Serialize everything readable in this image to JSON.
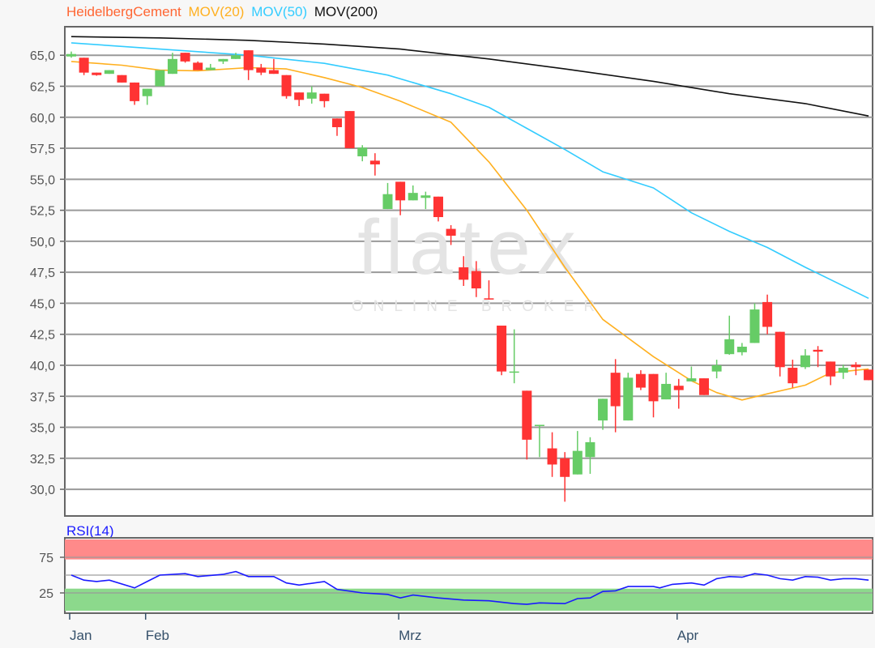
{
  "legend": {
    "instrument": "HeidelbergCement",
    "ma20": "MOV(20)",
    "ma50": "MOV(50)",
    "ma200": "MOV(200)"
  },
  "watermark": {
    "logo": "flatex",
    "tagline": "ONLINE BROKER"
  },
  "colors": {
    "instrument": "#ff6633",
    "ma20": "#ffb020",
    "ma50": "#33ccff",
    "ma200": "#111111",
    "up": "#66cc66",
    "down": "#ff3333",
    "rsi": "#1a1aff",
    "rsi_overbought": "#ff8a8a",
    "rsi_oversold": "#8cd98c"
  },
  "chart_data": [
    {
      "type": "candlestick",
      "title": "",
      "ylim": [
        27.85,
        67.3
      ],
      "grid": true,
      "legend_placement": "top-left",
      "y_ticks": [
        {
          "value": 65.0,
          "label": "65,0"
        },
        {
          "value": 62.5,
          "label": "62,5"
        },
        {
          "value": 60.0,
          "label": "60,0"
        },
        {
          "value": 57.5,
          "label": "57,5"
        },
        {
          "value": 55.0,
          "label": "55,0"
        },
        {
          "value": 52.5,
          "label": "52,5"
        },
        {
          "value": 50.0,
          "label": "50,0"
        },
        {
          "value": 47.5,
          "label": "47,5"
        },
        {
          "value": 45.0,
          "label": "45,0"
        },
        {
          "value": 42.5,
          "label": "42,5"
        },
        {
          "value": 40.0,
          "label": "40,0"
        },
        {
          "value": 37.5,
          "label": "37,5"
        },
        {
          "value": 35.0,
          "label": "35,0"
        },
        {
          "value": 32.5,
          "label": "32,5"
        },
        {
          "value": 30.0,
          "label": "30,0"
        }
      ],
      "x_ticks": [
        {
          "index": 1,
          "label": "Jan"
        },
        {
          "index": 7,
          "label": "Feb"
        },
        {
          "index": 27,
          "label": "Mrz"
        },
        {
          "index": 49,
          "label": "Apr"
        }
      ],
      "ohlc": [
        [
          64.9,
          65.3,
          64.8,
          65.1
        ],
        [
          64.8,
          64.8,
          63.4,
          63.6
        ],
        [
          63.6,
          63.6,
          63.35,
          63.4
        ],
        [
          63.5,
          63.8,
          63.5,
          63.8
        ],
        [
          63.4,
          63.4,
          62.8,
          62.8
        ],
        [
          62.8,
          62.8,
          61.0,
          61.3
        ],
        [
          61.7,
          62.3,
          61.0,
          62.3
        ],
        [
          62.5,
          63.8,
          62.5,
          63.8
        ],
        [
          63.5,
          65.2,
          63.5,
          64.7
        ],
        [
          65.2,
          65.2,
          64.4,
          64.5
        ],
        [
          64.4,
          64.5,
          63.8,
          63.8
        ],
        [
          63.8,
          64.3,
          63.8,
          64.0
        ],
        [
          64.5,
          64.7,
          64.3,
          64.7
        ],
        [
          64.7,
          65.2,
          64.7,
          65.0
        ],
        [
          65.4,
          65.4,
          63.0,
          63.8
        ],
        [
          64.0,
          64.3,
          63.4,
          63.6
        ],
        [
          63.8,
          64.7,
          63.5,
          63.5
        ],
        [
          63.4,
          63.4,
          61.5,
          61.7
        ],
        [
          62.0,
          62.0,
          60.9,
          61.4
        ],
        [
          61.5,
          62.5,
          61.1,
          62.0
        ],
        [
          61.9,
          61.9,
          60.8,
          61.3
        ],
        [
          59.9,
          59.9,
          58.5,
          59.2
        ],
        [
          60.5,
          60.5,
          57.5,
          57.5
        ],
        [
          56.85,
          57.75,
          56.45,
          57.55
        ],
        [
          56.5,
          57.1,
          55.3,
          56.2
        ],
        [
          52.6,
          54.7,
          52.6,
          53.8
        ],
        [
          54.8,
          54.8,
          52.1,
          53.3
        ],
        [
          53.3,
          54.5,
          53.3,
          53.9
        ],
        [
          53.5,
          54.0,
          52.6,
          53.7
        ],
        [
          53.6,
          53.6,
          51.6,
          51.95
        ],
        [
          51.0,
          51.3,
          49.7,
          50.45
        ],
        [
          47.9,
          48.8,
          46.4,
          46.9
        ],
        [
          47.6,
          48.4,
          45.5,
          46.2
        ],
        [
          45.4,
          46.85,
          45.3,
          45.3
        ],
        [
          43.2,
          43.2,
          39.2,
          39.5
        ],
        [
          39.4,
          42.9,
          38.55,
          39.5
        ],
        [
          37.95,
          37.95,
          32.4,
          34.0
        ],
        [
          35.1,
          35.2,
          32.6,
          35.2
        ],
        [
          33.3,
          34.6,
          31.0,
          32.0
        ],
        [
          32.5,
          33.0,
          29.0,
          31.0
        ],
        [
          31.2,
          34.7,
          31.2,
          33.1
        ],
        [
          32.6,
          34.2,
          31.25,
          33.8
        ],
        [
          35.55,
          37.3,
          34.8,
          37.3
        ],
        [
          39.4,
          40.5,
          34.6,
          36.7
        ],
        [
          35.55,
          39.4,
          35.55,
          39.0
        ],
        [
          39.3,
          39.6,
          38.0,
          38.2
        ],
        [
          39.3,
          39.3,
          35.8,
          37.1
        ],
        [
          37.25,
          39.4,
          37.25,
          38.5
        ],
        [
          38.35,
          38.9,
          36.5,
          38.0
        ],
        [
          38.7,
          39.9,
          38.7,
          38.95
        ],
        [
          38.95,
          38.95,
          37.6,
          37.6
        ],
        [
          39.5,
          40.45,
          38.95,
          40.0
        ],
        [
          40.9,
          44.0,
          40.85,
          42.1
        ],
        [
          41.05,
          41.8,
          40.8,
          41.5
        ],
        [
          41.8,
          45.0,
          41.8,
          44.5
        ],
        [
          45.1,
          45.7,
          42.5,
          43.1
        ],
        [
          42.7,
          42.7,
          39.1,
          39.85
        ],
        [
          39.8,
          40.45,
          38.2,
          38.55
        ],
        [
          39.85,
          41.3,
          39.7,
          40.8
        ],
        [
          41.25,
          41.55,
          39.85,
          41.1
        ],
        [
          40.3,
          40.3,
          38.4,
          39.1
        ],
        [
          39.4,
          40.05,
          38.9,
          39.8
        ],
        [
          40.05,
          40.25,
          39.2,
          39.85
        ],
        [
          39.65,
          39.65,
          38.8,
          38.8
        ]
      ],
      "series": [
        {
          "name": "MOV(20)",
          "key": "ma20",
          "points": [
            [
              1,
              64.5
            ],
            [
              5,
              64.2
            ],
            [
              8,
              63.8
            ],
            [
              11,
              63.75
            ],
            [
              15,
              64.0
            ],
            [
              18,
              63.9
            ],
            [
              21,
              63.2
            ],
            [
              24,
              62.4
            ],
            [
              27,
              61.3
            ],
            [
              31,
              59.6
            ],
            [
              34,
              56.4
            ],
            [
              37,
              52.5
            ],
            [
              40,
              47.9
            ],
            [
              43,
              43.7
            ],
            [
              47,
              40.7
            ],
            [
              50,
              38.75
            ],
            [
              52,
              37.8
            ],
            [
              54,
              37.2
            ],
            [
              56,
              37.7
            ],
            [
              59,
              38.4
            ],
            [
              61,
              39.4
            ],
            [
              64,
              39.7
            ]
          ]
        },
        {
          "name": "MOV(50)",
          "key": "ma50",
          "points": [
            [
              1,
              66.0
            ],
            [
              8,
              65.5
            ],
            [
              15,
              65.0
            ],
            [
              21,
              64.35
            ],
            [
              26,
              63.4
            ],
            [
              31,
              61.9
            ],
            [
              34,
              60.8
            ],
            [
              37,
              59.1
            ],
            [
              40,
              57.4
            ],
            [
              43,
              55.6
            ],
            [
              47,
              54.3
            ],
            [
              50,
              52.3
            ],
            [
              53,
              50.8
            ],
            [
              56,
              49.5
            ],
            [
              59,
              47.9
            ],
            [
              64,
              45.4
            ]
          ]
        },
        {
          "name": "MOV(200)",
          "key": "ma200",
          "points": [
            [
              1,
              66.5
            ],
            [
              8,
              66.4
            ],
            [
              15,
              66.2
            ],
            [
              21,
              65.9
            ],
            [
              27,
              65.5
            ],
            [
              34,
              64.7
            ],
            [
              40,
              63.9
            ],
            [
              47,
              62.9
            ],
            [
              53,
              61.9
            ],
            [
              59,
              61.1
            ],
            [
              64,
              60.1
            ]
          ]
        }
      ]
    },
    {
      "type": "line",
      "title": "RSI(14)",
      "ylim": [
        0,
        100
      ],
      "y_ticks": [
        {
          "value": 75,
          "label": "75"
        },
        {
          "value": 25,
          "label": "25"
        }
      ],
      "bands": {
        "overbought": [
          72,
          100
        ],
        "oversold": [
          0,
          31
        ]
      },
      "gridlines": [
        75,
        50,
        25
      ],
      "series": [
        {
          "name": "RSI(14)",
          "points": [
            [
              1,
              50
            ],
            [
              2,
              43
            ],
            [
              3,
              41
            ],
            [
              4,
              43
            ],
            [
              6,
              32
            ],
            [
              7,
              41
            ],
            [
              8,
              50
            ],
            [
              10,
              52
            ],
            [
              11,
              48
            ],
            [
              13,
              51
            ],
            [
              14,
              55
            ],
            [
              15,
              48
            ],
            [
              17,
              48
            ],
            [
              18,
              39
            ],
            [
              19,
              36
            ],
            [
              21,
              41
            ],
            [
              22,
              30
            ],
            [
              24,
              25
            ],
            [
              26,
              23
            ],
            [
              27,
              18
            ],
            [
              28,
              22
            ],
            [
              30,
              18
            ],
            [
              32,
              15
            ],
            [
              34,
              14
            ],
            [
              36,
              10
            ],
            [
              37,
              9
            ],
            [
              38,
              11
            ],
            [
              40,
              10
            ],
            [
              41,
              17
            ],
            [
              42,
              18
            ],
            [
              43,
              27
            ],
            [
              44,
              28
            ],
            [
              45,
              34
            ],
            [
              47,
              34
            ],
            [
              47.5,
              32
            ],
            [
              48.5,
              37
            ],
            [
              50,
              39
            ],
            [
              51,
              36
            ],
            [
              52,
              45
            ],
            [
              53,
              48
            ],
            [
              54,
              47
            ],
            [
              55,
              52
            ],
            [
              56,
              50
            ],
            [
              57,
              45
            ],
            [
              58,
              43
            ],
            [
              59,
              48
            ],
            [
              60,
              47
            ],
            [
              61,
              43
            ],
            [
              62,
              45
            ],
            [
              63,
              45
            ],
            [
              64,
              43
            ]
          ]
        }
      ]
    }
  ]
}
